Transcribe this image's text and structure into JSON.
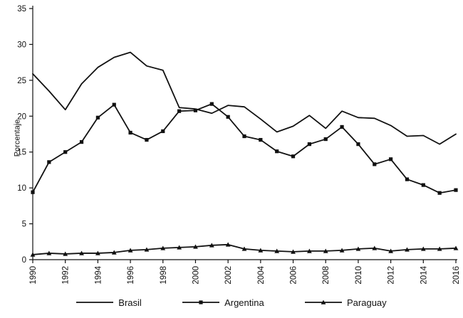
{
  "chart_data": {
    "type": "line",
    "title": "",
    "xlabel": "",
    "ylabel": "Porcentaje",
    "ylim": [
      0,
      35
    ],
    "yticks": [
      0,
      5,
      10,
      15,
      20,
      25,
      30,
      35
    ],
    "x": [
      1990,
      1991,
      1992,
      1993,
      1994,
      1995,
      1996,
      1997,
      1998,
      1999,
      2000,
      2001,
      2002,
      2003,
      2004,
      2005,
      2006,
      2007,
      2008,
      2009,
      2010,
      2011,
      2012,
      2013,
      2014,
      2015,
      2016
    ],
    "xtick_labels": [
      "1990",
      "1992",
      "1994",
      "1996",
      "1998",
      "2000",
      "2002",
      "2004",
      "2006",
      "2008",
      "2010",
      "2012",
      "2014",
      "2016"
    ],
    "grid": false,
    "line_color": "#111111",
    "legend_position": "bottom",
    "series": [
      {
        "name": "Brasil",
        "marker": "none",
        "values": [
          25.9,
          23.5,
          20.9,
          24.5,
          26.8,
          28.2,
          28.9,
          27.0,
          26.4,
          21.2,
          21.0,
          20.4,
          21.5,
          21.3,
          19.6,
          17.8,
          18.6,
          20.1,
          18.3,
          20.7,
          19.8,
          19.7,
          18.7,
          17.2,
          17.3,
          16.1,
          17.5
        ]
      },
      {
        "name": "Argentina",
        "marker": "square",
        "values": [
          9.4,
          13.6,
          15.0,
          16.4,
          19.8,
          21.6,
          17.7,
          16.7,
          17.9,
          20.7,
          20.8,
          21.7,
          19.9,
          17.2,
          16.7,
          15.1,
          14.4,
          16.1,
          16.8,
          18.5,
          16.1,
          13.3,
          14.0,
          11.2,
          10.4,
          9.3,
          9.7
        ]
      },
      {
        "name": "Paraguay",
        "marker": "triangle",
        "values": [
          0.7,
          0.9,
          0.8,
          0.9,
          0.9,
          1.0,
          1.3,
          1.4,
          1.6,
          1.7,
          1.8,
          2.0,
          2.1,
          1.5,
          1.3,
          1.2,
          1.1,
          1.2,
          1.2,
          1.3,
          1.5,
          1.6,
          1.2,
          1.4,
          1.5,
          1.5,
          1.6
        ]
      }
    ]
  }
}
